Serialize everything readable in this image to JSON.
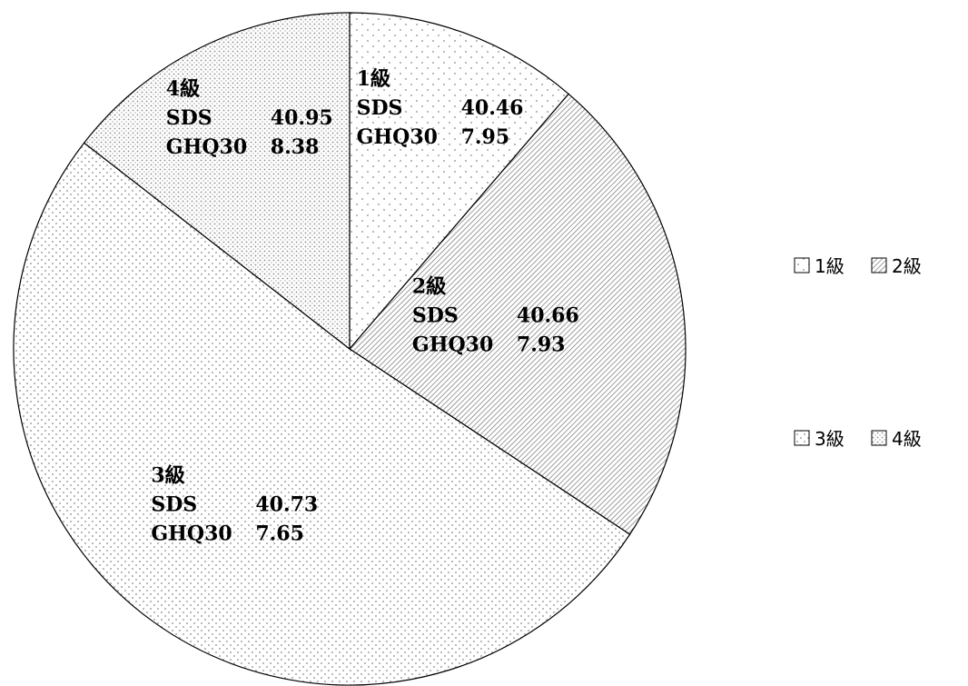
{
  "chart_data": {
    "type": "pie",
    "title": "",
    "slices": [
      {
        "label": "1級",
        "value": 11.3,
        "sds_label": "SDS",
        "sds": "40.46",
        "ghq_label": "GHQ30",
        "ghq": "7.95",
        "pattern": "sparse-dots"
      },
      {
        "label": "2級",
        "value": 23.0,
        "sds_label": "SDS",
        "sds": "40.66",
        "ghq_label": "GHQ30",
        "ghq": "7.93",
        "pattern": "diagonal-hatch"
      },
      {
        "label": "3級",
        "value": 51.2,
        "sds_label": "SDS",
        "sds": "40.73",
        "ghq_label": "GHQ30",
        "ghq": "7.65",
        "pattern": "sparse-dots-dense"
      },
      {
        "label": "4級",
        "value": 14.5,
        "sds_label": "SDS",
        "sds": "40.95",
        "ghq_label": "GHQ30",
        "ghq": "8.38",
        "pattern": "dense-dots"
      }
    ],
    "legend": {
      "placement": "right",
      "items": [
        "1級",
        "2級",
        "3級",
        "4級"
      ]
    },
    "start_angle_deg": 0,
    "direction": "clockwise"
  }
}
